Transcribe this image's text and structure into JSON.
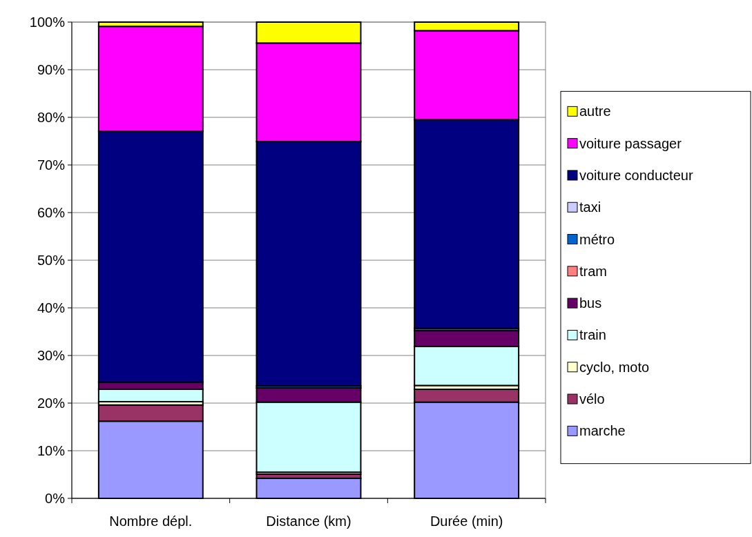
{
  "chart_data": {
    "type": "bar",
    "stacked": true,
    "categories": [
      "Nombre dépl.",
      "Distance (km)",
      "Durée (min)"
    ],
    "series": [
      {
        "name": "marche",
        "color": "#9999ff",
        "values": [
          16.2,
          4.2,
          20.2
        ]
      },
      {
        "name": "vélo",
        "color": "#993366",
        "values": [
          3.4,
          0.9,
          2.7
        ]
      },
      {
        "name": "cyclo, moto",
        "color": "#ffffcc",
        "values": [
          0.7,
          0.4,
          0.8
        ]
      },
      {
        "name": "train",
        "color": "#ccffff",
        "values": [
          2.6,
          14.7,
          8.2
        ]
      },
      {
        "name": "bus",
        "color": "#660066",
        "values": [
          1.5,
          3.0,
          3.3
        ]
      },
      {
        "name": "tram",
        "color": "#ff8080",
        "values": [
          null,
          null,
          null
        ]
      },
      {
        "name": "métro",
        "color": "#0066cc",
        "values": [
          null,
          0.4,
          0.5
        ]
      },
      {
        "name": "taxi",
        "color": "#ccccff",
        "values": [
          null,
          null,
          null
        ]
      },
      {
        "name": "voiture conducteur",
        "color": "#000080",
        "values": [
          52.7,
          51.3,
          43.8
        ]
      },
      {
        "name": "voiture passager",
        "color": "#ff00ff",
        "values": [
          22.0,
          20.7,
          18.7
        ]
      },
      {
        "name": "autre",
        "color": "#ffff00",
        "values": [
          0.9,
          4.4,
          1.8
        ]
      }
    ],
    "ylim": [
      0,
      100
    ],
    "yticks": [
      {
        "value": 0,
        "label": "0%"
      },
      {
        "value": 10,
        "label": "10%"
      },
      {
        "value": 20,
        "label": "20%"
      },
      {
        "value": 30,
        "label": "30%"
      },
      {
        "value": 40,
        "label": "40%"
      },
      {
        "value": 50,
        "label": "50%"
      },
      {
        "value": 60,
        "label": "60%"
      },
      {
        "value": 70,
        "label": "70%"
      },
      {
        "value": 80,
        "label": "80%"
      },
      {
        "value": 90,
        "label": "90%"
      },
      {
        "value": 100,
        "label": "100%"
      }
    ],
    "grid": "y",
    "legend": "right"
  }
}
